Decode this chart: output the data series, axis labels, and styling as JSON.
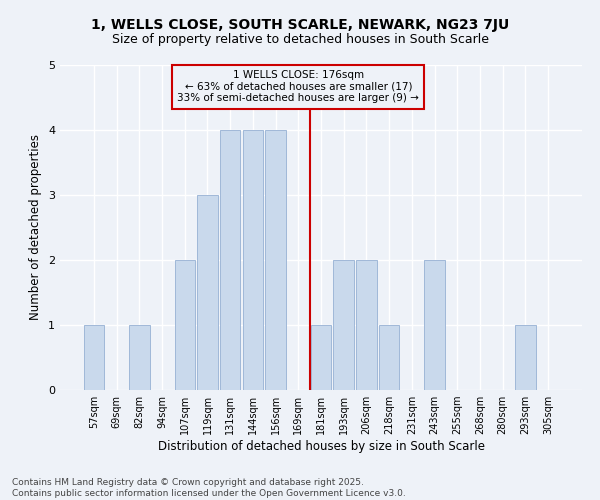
{
  "title": "1, WELLS CLOSE, SOUTH SCARLE, NEWARK, NG23 7JU",
  "subtitle": "Size of property relative to detached houses in South Scarle",
  "xlabel": "Distribution of detached houses by size in South Scarle",
  "ylabel": "Number of detached properties",
  "categories": [
    "57sqm",
    "69sqm",
    "82sqm",
    "94sqm",
    "107sqm",
    "119sqm",
    "131sqm",
    "144sqm",
    "156sqm",
    "169sqm",
    "181sqm",
    "193sqm",
    "206sqm",
    "218sqm",
    "231sqm",
    "243sqm",
    "255sqm",
    "268sqm",
    "280sqm",
    "293sqm",
    "305sqm"
  ],
  "values": [
    1,
    0,
    1,
    0,
    2,
    3,
    4,
    4,
    4,
    0,
    1,
    2,
    2,
    1,
    0,
    2,
    0,
    0,
    0,
    1,
    0
  ],
  "bar_color": "#c9d9ec",
  "bar_edgecolor": "#a0b8d8",
  "annotation_text": "1 WELLS CLOSE: 176sqm\n← 63% of detached houses are smaller (17)\n33% of semi-detached houses are larger (9) →",
  "annotation_box_edgecolor": "#cc0000",
  "reference_line_color": "#cc0000",
  "ref_bin_index": 10,
  "ylim": [
    0,
    5
  ],
  "yticks": [
    0,
    1,
    2,
    3,
    4,
    5
  ],
  "background_color": "#eef2f8",
  "grid_color": "#ffffff",
  "footer": "Contains HM Land Registry data © Crown copyright and database right 2025.\nContains public sector information licensed under the Open Government Licence v3.0.",
  "title_fontsize": 10,
  "subtitle_fontsize": 9,
  "xlabel_fontsize": 8.5,
  "ylabel_fontsize": 8.5,
  "tick_fontsize": 7,
  "annotation_fontsize": 7.5,
  "footer_fontsize": 6.5
}
